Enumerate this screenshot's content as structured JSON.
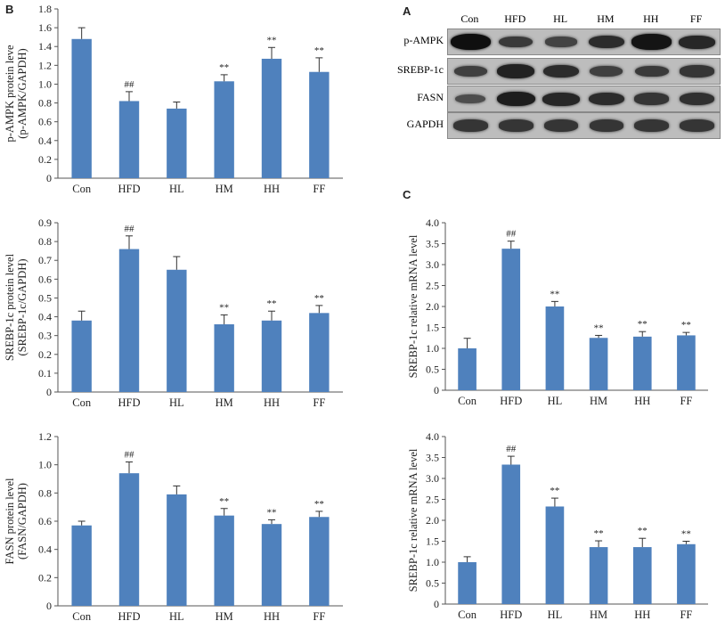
{
  "panel_labels": {
    "b": "B",
    "a": "A",
    "c": "C"
  },
  "blot": {
    "lanes": [
      "Con",
      "HFD",
      "HL",
      "HM",
      "HH",
      "FF"
    ],
    "rows": [
      {
        "label": "p-AMPK",
        "intensity": [
          1.0,
          0.55,
          0.45,
          0.7,
          0.95,
          0.75
        ]
      },
      {
        "label": "SREBP-1c",
        "intensity": [
          0.5,
          0.8,
          0.7,
          0.5,
          0.55,
          0.6
        ]
      },
      {
        "label": "FASN",
        "intensity": [
          0.35,
          0.85,
          0.75,
          0.7,
          0.6,
          0.65
        ]
      },
      {
        "label": "GAPDH",
        "intensity": [
          0.6,
          0.6,
          0.6,
          0.6,
          0.6,
          0.6
        ]
      }
    ]
  },
  "bar_color": "#4f81bd",
  "chart_data": [
    {
      "type": "bar",
      "categories": [
        "Con",
        "HFD",
        "HL",
        "HM",
        "HH",
        "FF"
      ],
      "values": [
        1.48,
        0.82,
        0.74,
        1.03,
        1.27,
        1.13
      ],
      "errors": [
        0.12,
        0.1,
        0.07,
        0.07,
        0.12,
        0.15
      ],
      "annotations": [
        "",
        "##",
        "",
        "**",
        "**",
        "**"
      ],
      "ylabel_lines": [
        "p-AMPK protein leve",
        "(p-AMPK/GAPDH)"
      ],
      "ylim": [
        0,
        1.8
      ],
      "yticks": [
        0,
        0.2,
        0.4,
        0.6,
        0.8,
        1.0,
        1.2,
        1.4,
        1.6,
        1.8
      ],
      "ytick_labels": [
        "0",
        "0.2",
        "0.4",
        "0.6",
        "0.8",
        "1.0",
        "1.2",
        "1.4",
        "1.6",
        "1.8"
      ]
    },
    {
      "type": "bar",
      "categories": [
        "Con",
        "HFD",
        "HL",
        "HM",
        "HH",
        "FF"
      ],
      "values": [
        0.38,
        0.76,
        0.65,
        0.36,
        0.38,
        0.42
      ],
      "errors": [
        0.05,
        0.07,
        0.07,
        0.05,
        0.05,
        0.04
      ],
      "annotations": [
        "",
        "##",
        "",
        "**",
        "**",
        "**"
      ],
      "ylabel_lines": [
        "SREBP-1c protein level",
        "(SREBP-1c/GAPDH)"
      ],
      "ylim": [
        0,
        0.9
      ],
      "yticks": [
        0,
        0.1,
        0.2,
        0.3,
        0.4,
        0.5,
        0.6,
        0.7,
        0.8,
        0.9
      ],
      "ytick_labels": [
        "0",
        "0.1",
        "0.2",
        "0.3",
        "0.4",
        "0.5",
        "0.6",
        "0.7",
        "0.8",
        "0.9"
      ]
    },
    {
      "type": "bar",
      "categories": [
        "Con",
        "HFD",
        "HL",
        "HM",
        "HH",
        "FF"
      ],
      "values": [
        0.57,
        0.94,
        0.79,
        0.64,
        0.58,
        0.63
      ],
      "errors": [
        0.03,
        0.08,
        0.06,
        0.05,
        0.03,
        0.04
      ],
      "annotations": [
        "",
        "##",
        "",
        "**",
        "**",
        "**"
      ],
      "ylabel_lines": [
        "FASN protein level",
        "(FASN/GAPDH)"
      ],
      "ylim": [
        0,
        1.2
      ],
      "yticks": [
        0,
        0.2,
        0.4,
        0.6,
        0.8,
        1.0,
        1.2
      ],
      "ytick_labels": [
        "0",
        "0.2",
        "0.4",
        "0.6",
        "0.8",
        "1.0",
        "1.2"
      ]
    },
    {
      "type": "bar",
      "categories": [
        "Con",
        "HFD",
        "HL",
        "HM",
        "HH",
        "FF"
      ],
      "values": [
        1.0,
        3.38,
        2.0,
        1.25,
        1.28,
        1.31
      ],
      "errors": [
        0.24,
        0.18,
        0.12,
        0.06,
        0.12,
        0.07
      ],
      "annotations": [
        "",
        "##",
        "**",
        "**",
        "**",
        "**"
      ],
      "ylabel_lines": [
        "SREBP-1c relative mRNA level"
      ],
      "ylim": [
        0,
        4.0
      ],
      "yticks": [
        0,
        0.5,
        1.0,
        1.5,
        2.0,
        2.5,
        3.0,
        3.5,
        4.0
      ],
      "ytick_labels": [
        "0",
        "0.5",
        "1.0",
        "1.5",
        "2.0",
        "2.5",
        "3.0",
        "3.5",
        "4.0"
      ]
    },
    {
      "type": "bar",
      "categories": [
        "Con",
        "HFD",
        "HL",
        "HM",
        "HH",
        "FF"
      ],
      "values": [
        1.0,
        3.33,
        2.33,
        1.36,
        1.36,
        1.43
      ],
      "errors": [
        0.13,
        0.2,
        0.2,
        0.15,
        0.21,
        0.07
      ],
      "annotations": [
        "",
        "##",
        "**",
        "**",
        "**",
        "**"
      ],
      "ylabel_lines": [
        "SREBP-1c relative mRNA level"
      ],
      "ylim": [
        0,
        4.0
      ],
      "yticks": [
        0,
        0.5,
        1.0,
        1.5,
        2.0,
        2.5,
        3.0,
        3.5,
        4.0
      ],
      "ytick_labels": [
        "0",
        "0.5",
        "1.0",
        "1.5",
        "2.0",
        "2.5",
        "3.0",
        "3.5",
        "4.0"
      ]
    }
  ]
}
